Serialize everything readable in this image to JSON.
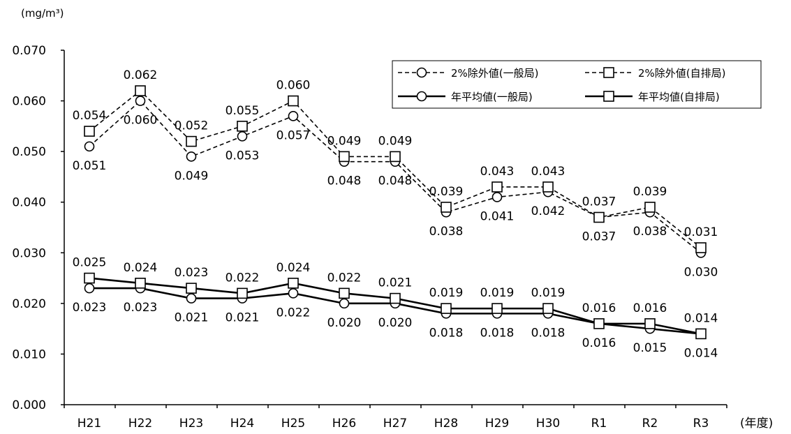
{
  "chart_data": {
    "type": "line",
    "y_unit": "(mg/m³)",
    "x_unit": "(年度)",
    "categories": [
      "H21",
      "H22",
      "H23",
      "H24",
      "H25",
      "H26",
      "H27",
      "H28",
      "H29",
      "H30",
      "R1",
      "R2",
      "R3"
    ],
    "ylim": [
      0,
      0.07
    ],
    "yticks": [
      "0.000",
      "0.010",
      "0.020",
      "0.030",
      "0.040",
      "0.050",
      "0.060",
      "0.070"
    ],
    "grid": false,
    "legend_position": "top-right",
    "series": [
      {
        "name": "2%除外値(一般局)",
        "style": "dashed",
        "marker": "circle",
        "values": [
          0.051,
          0.06,
          0.049,
          0.053,
          0.057,
          0.048,
          0.048,
          0.038,
          0.041,
          0.042,
          0.037,
          0.038,
          0.03
        ],
        "labels": [
          "0.051",
          "0.060",
          "0.049",
          "0.053",
          "0.057",
          "0.048",
          "0.048",
          "0.038",
          "0.041",
          "0.042",
          "0.037",
          "0.038",
          "0.030"
        ]
      },
      {
        "name": "2%除外値(自排局)",
        "style": "dashed",
        "marker": "square",
        "values": [
          0.054,
          0.062,
          0.052,
          0.055,
          0.06,
          0.049,
          0.049,
          0.039,
          0.043,
          0.043,
          0.037,
          0.039,
          0.031
        ],
        "labels": [
          "0.054",
          "0.062",
          "0.052",
          "0.055",
          "0.060",
          "0.049",
          "0.049",
          "0.039",
          "0.043",
          "0.043",
          "0.037",
          "0.039",
          "0.031"
        ]
      },
      {
        "name": "年平均値(一般局)",
        "style": "solid",
        "marker": "circle",
        "values": [
          0.023,
          0.023,
          0.021,
          0.021,
          0.022,
          0.02,
          0.02,
          0.018,
          0.018,
          0.018,
          0.016,
          0.015,
          0.014
        ],
        "labels": [
          "0.023",
          "0.023",
          "0.021",
          "0.021",
          "0.022",
          "0.020",
          "0.020",
          "0.018",
          "0.018",
          "0.018",
          "0.016",
          "0.015",
          "0.014"
        ]
      },
      {
        "name": "年平均値(自排局)",
        "style": "solid",
        "marker": "square",
        "values": [
          0.025,
          0.024,
          0.023,
          0.022,
          0.024,
          0.022,
          0.021,
          0.019,
          0.019,
          0.019,
          0.016,
          0.016,
          0.014
        ],
        "labels": [
          "0.025",
          "0.024",
          "0.023",
          "0.022",
          "0.024",
          "0.022",
          "0.021",
          "0.019",
          "0.019",
          "0.019",
          "0.016",
          "0.016",
          "0.014"
        ]
      }
    ]
  }
}
